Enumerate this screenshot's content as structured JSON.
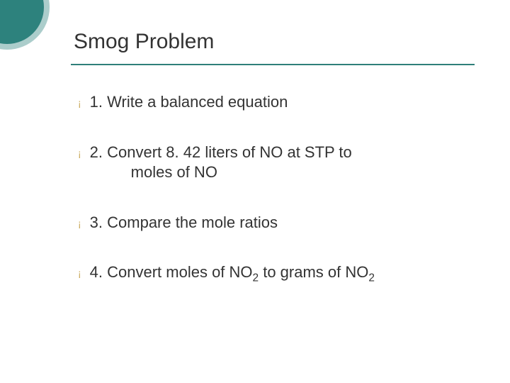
{
  "title": "Smog Problem",
  "accent_color": "#2d827d",
  "accent_color_light": "rgba(45,130,125,0.4)",
  "bullet_color": "#c9a95a",
  "bullet_glyph": "¡",
  "items": [
    {
      "text": "1. Write a balanced equation",
      "cont": ""
    },
    {
      "text": "2. Convert 8. 42 liters of NO at STP to",
      "cont": "moles of NO"
    },
    {
      "text": "3. Compare the mole ratios",
      "cont": ""
    },
    {
      "text": "4. Convert moles of NO",
      "sub1": "2",
      "mid": " to grams of NO",
      "sub2": "2"
    }
  ]
}
